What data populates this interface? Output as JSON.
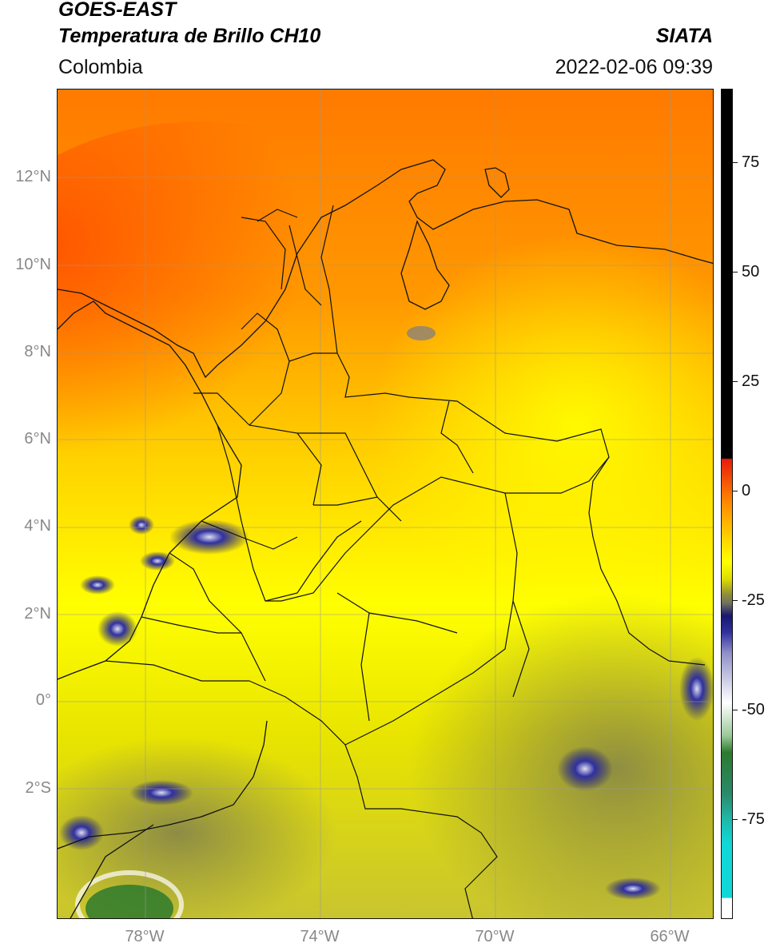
{
  "header": {
    "satellite": "GOES-EAST",
    "product": "Temperatura de Brillo CH10",
    "region": "Colombia",
    "organization": "SIATA",
    "timestamp": "2022-02-06 09:39"
  },
  "map": {
    "lat_range": [
      -5,
      14
    ],
    "lon_range": [
      -80,
      -65
    ],
    "lat_ticks": [
      "12°N",
      "10°N",
      "8°N",
      "6°N",
      "4°N",
      "2°N",
      "0°",
      "2°S"
    ],
    "lon_ticks": [
      "78°W",
      "74°W",
      "70°W",
      "66°W"
    ],
    "grid": true
  },
  "colorbar": {
    "ticks": [
      "75",
      "50",
      "25",
      "0",
      "-25",
      "-50",
      "-75"
    ],
    "colors": {
      "black": "#000000",
      "red": "#e81c0c",
      "orange": "#ff8c00",
      "yellow": "#ffff00",
      "olive": "#8c8c3c",
      "navy": "#18186e",
      "white": "#ffffff",
      "green": "#2d7a2d",
      "cyan": "#10d8d8"
    }
  }
}
